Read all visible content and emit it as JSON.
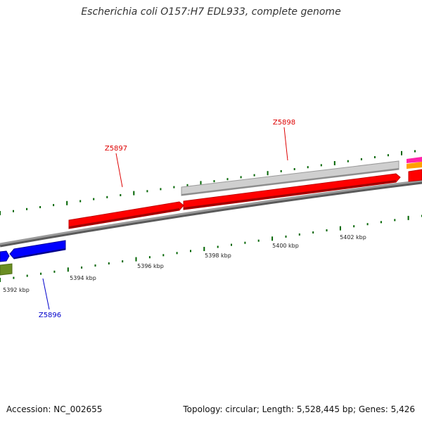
{
  "title": "Escherichia coli O157:H7 EDL933, complete genome",
  "footer": {
    "accession": "Accession: NC_002655",
    "stats": "Topology: circular; Length: 5,528,445 bp; Genes: 5,426"
  },
  "ticks": [
    {
      "label": "5392 kbp",
      "kbp": 5392
    },
    {
      "label": "5394 kbp",
      "kbp": 5394
    },
    {
      "label": "5396 kbp",
      "kbp": 5396
    },
    {
      "label": "5398 kbp",
      "kbp": 5398
    },
    {
      "label": "5400 kbp",
      "kbp": 5400
    },
    {
      "label": "5402 kbp",
      "kbp": 5402
    }
  ],
  "gene_labels": [
    {
      "label": "Z5897",
      "color": "#dd0000"
    },
    {
      "label": "Z5898",
      "color": "#dd0000"
    },
    {
      "label": "Z5896",
      "color": "#0000cc"
    }
  ],
  "colors": {
    "backbone": "#808080",
    "forward_gene": "#ff0000",
    "reverse_gene": "#0000ff",
    "grey_gene": "#c8c8c8",
    "olive_gene": "#6b8e23",
    "magenta_gene": "#ff00aa",
    "orange_gene": "#ff9900",
    "tick": "#006400"
  }
}
